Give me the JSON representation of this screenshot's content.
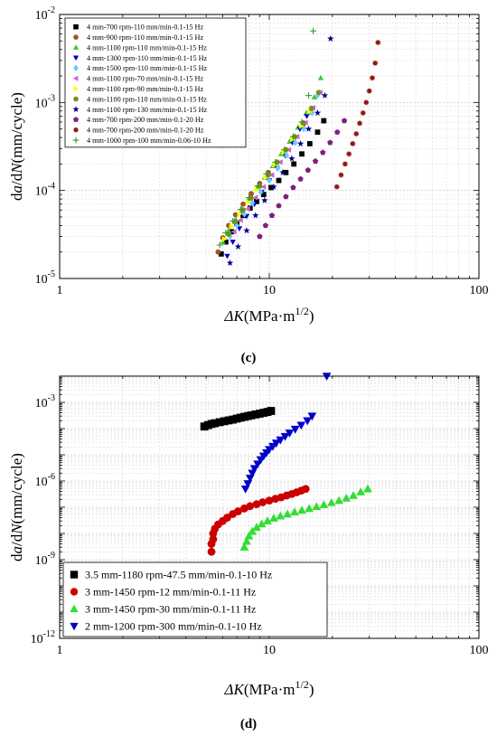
{
  "colors": {
    "frame": "#000000",
    "grid": "#c8c8c8",
    "legendBorder": "#000000"
  },
  "chart_data": [
    {
      "type": "scatter",
      "panel_label": "(c)",
      "xscale": "log",
      "yscale": "log",
      "xlim": [
        1,
        100
      ],
      "ylim": [
        1e-05,
        0.01
      ],
      "x_ticks": [
        {
          "v": 1,
          "label": "1"
        },
        {
          "v": 10,
          "label": "10"
        },
        {
          "v": 100,
          "label": "100"
        }
      ],
      "y_ticks": [
        {
          "v": 1e-05,
          "base": "10",
          "exp": "-5"
        },
        {
          "v": 0.0001,
          "base": "10",
          "exp": "-4"
        },
        {
          "v": 0.001,
          "base": "10",
          "exp": "-3"
        },
        {
          "v": 0.01,
          "base": "10",
          "exp": "-2"
        }
      ],
      "xlabel": {
        "sym": "ΔK",
        "unit": "(MPa·m",
        "exp": "1/2",
        "close": ")"
      },
      "ylabel": {
        "a": "d",
        "b": "a",
        "c": "/d",
        "d": "N",
        "e": "(mm/cycle)"
      },
      "grid": true,
      "legend_position": "top-left",
      "series": [
        {
          "name": "4 mm-700 rpm-110 mm/min-0.1-15 Hz",
          "marker": "square",
          "color": "#000000",
          "x": [
            5.9,
            6.2,
            6.6,
            7.0,
            7.5,
            8.1,
            8.7,
            9.4,
            10.2,
            11.1,
            12.0,
            13.1,
            14.3,
            15.6,
            17.0,
            18.2
          ],
          "y": [
            1.9e-05,
            2.6e-05,
            3.4e-05,
            4.2e-05,
            5.2e-05,
            6.3e-05,
            7.5e-05,
            9e-05,
            0.000108,
            0.00013,
            0.00016,
            0.0002,
            0.00026,
            0.00034,
            0.00046,
            0.00062
          ]
        },
        {
          "name": "4 mm-900 rpm-110 mm/min-0.1-15 Hz",
          "marker": "circle",
          "color": "#a0522d",
          "x": [
            5.7,
            6.0,
            6.4,
            6.9,
            7.5,
            8.2,
            9.0,
            9.9,
            10.9,
            12.0,
            13.2,
            14.5,
            15.8
          ],
          "y": [
            2e-05,
            2.9e-05,
            4e-05,
            5.3e-05,
            7e-05,
            9.2e-05,
            0.00012,
            0.00016,
            0.00021,
            0.00029,
            0.0004,
            0.00056,
            0.00078
          ]
        },
        {
          "name": "4 mm-1100 rpm-110 mm/min-0.1-15 Hz",
          "marker": "triangle-up",
          "color": "#33cc33",
          "x": [
            6.0,
            6.4,
            6.9,
            7.4,
            8.0,
            8.7,
            9.5,
            10.4,
            11.4,
            12.5,
            13.7,
            15.0,
            16.4,
            17.6
          ],
          "y": [
            2.6e-05,
            3.5e-05,
            4.7e-05,
            6.2e-05,
            8.1e-05,
            0.000106,
            0.00014,
            0.00019,
            0.00026,
            0.00036,
            0.00052,
            0.00076,
            0.00115,
            0.0019
          ]
        },
        {
          "name": "4 mm-1300 rpm-110 mm/min-0.1-15 Hz",
          "marker": "triangle-down",
          "color": "#0000cc",
          "x": [
            6.3,
            6.7,
            7.2,
            7.8,
            8.5,
            9.2,
            10.0,
            10.9,
            11.9,
            12.9,
            14.0,
            15.1
          ],
          "y": [
            1.8e-05,
            2.6e-05,
            3.7e-05,
            5.1e-05,
            7e-05,
            9.6e-05,
            0.00013,
            0.00018,
            0.00025,
            0.00035,
            0.0005,
            0.0007
          ]
        },
        {
          "name": "4 mm-1500 rpm-110 mm/min-0.1-15 Hz",
          "marker": "diamond",
          "color": "#66ccff",
          "x": [
            6.5,
            7.0,
            7.6,
            8.3,
            9.1,
            10.0,
            11.0,
            12.1,
            13.3,
            14.6,
            16.0,
            17.0
          ],
          "y": [
            3e-05,
            4e-05,
            5.4e-05,
            7.2e-05,
            9.6e-05,
            0.00013,
            0.00018,
            0.00025,
            0.00035,
            0.0005,
            0.00076,
            0.0012
          ]
        },
        {
          "name": "4 mm-1100 rpm-70 mm/min-0.1-15 Hz",
          "marker": "triangle-left",
          "color": "#cc66cc",
          "x": [
            6.8,
            7.3,
            7.9,
            8.6,
            9.4,
            10.3,
            11.3,
            12.4,
            13.6,
            14.9,
            16.2,
            17.5
          ],
          "y": [
            3.4e-05,
            4.6e-05,
            6.2e-05,
            8.3e-05,
            0.00011,
            0.00015,
            0.00021,
            0.00029,
            0.00041,
            0.00059,
            0.00087,
            0.0013
          ]
        },
        {
          "name": "4 mm-1100 rpm-90 mm/min-0.1-15 Hz",
          "marker": "triangle-right",
          "color": "#ffff00",
          "x": [
            6.1,
            6.6,
            7.2,
            7.9,
            8.7,
            9.6,
            10.6,
            11.7,
            12.9,
            14.2,
            15.5
          ],
          "y": [
            2.8e-05,
            3.9e-05,
            5.4e-05,
            7.4e-05,
            0.000102,
            0.00014,
            0.000195,
            0.00027,
            0.00038,
            0.00054,
            0.00078
          ]
        },
        {
          "name": "4 mm-1100 rpm-110 mm/min-0.1-15 Hz",
          "marker": "hexagon",
          "color": "#7f8c1a",
          "x": [
            6.4,
            6.9,
            7.5,
            8.2,
            9.0,
            9.9,
            10.9,
            12.0,
            13.2,
            14.5,
            15.9,
            17.2
          ],
          "y": [
            3.2e-05,
            4.4e-05,
            6e-05,
            8.2e-05,
            0.000112,
            0.00015,
            0.00021,
            0.00029,
            0.00041,
            0.00059,
            0.00086,
            0.0013
          ]
        },
        {
          "name": "4 mm-1100 rpm-130 mm/min-0.1-15 Hz",
          "marker": "star",
          "color": "#000080",
          "x": [
            6.5,
            7.1,
            7.8,
            8.6,
            9.5,
            10.5,
            11.6,
            12.8,
            14.1,
            15.4,
            17.0,
            18.4,
            19.6
          ],
          "y": [
            1.5e-05,
            2.3e-05,
            3.5e-05,
            5.2e-05,
            7.7e-05,
            0.00011,
            0.00016,
            0.00023,
            0.00034,
            0.0005,
            0.00076,
            0.0012,
            0.0053
          ]
        },
        {
          "name": "4 mm-700 rpm-200 mm/min-0.1-20 Hz",
          "marker": "pentagon",
          "color": "#7f1f7f",
          "x": [
            9.0,
            9.6,
            10.3,
            11.1,
            12.0,
            13.0,
            14.1,
            15.3,
            16.6,
            18.0,
            19.5,
            21.1,
            22.8
          ],
          "y": [
            3e-05,
            4e-05,
            5.2e-05,
            6.7e-05,
            8.5e-05,
            0.000108,
            0.000135,
            0.00017,
            0.000215,
            0.00027,
            0.00035,
            0.00046,
            0.00062
          ]
        },
        {
          "name": "4 mm-700 rpm-200 mm/min-0.1-20 Hz",
          "marker": "circle-half",
          "color": "#8b1a1a",
          "x": [
            21.0,
            22.0,
            23.0,
            24.0,
            25.0,
            26.0,
            27.0,
            28.0,
            29.0,
            30.0,
            31.0,
            32.0,
            33.0
          ],
          "y": [
            0.00011,
            0.00015,
            0.0002,
            0.00026,
            0.00034,
            0.00044,
            0.00058,
            0.00076,
            0.001,
            0.00135,
            0.0019,
            0.0028,
            0.0048
          ]
        },
        {
          "name": "4 mm-1000 rpm-100 mm/min-0.06-10 Hz",
          "marker": "plus",
          "color": "#339933",
          "x": [
            5.8,
            6.2,
            6.7,
            7.3,
            8.0,
            8.8,
            9.7,
            10.7,
            11.8,
            13.0,
            14.3,
            15.4,
            16.2
          ],
          "y": [
            2.4e-05,
            3.3e-05,
            4.5e-05,
            6.1e-05,
            8.3e-05,
            0.000113,
            0.000155,
            0.00021,
            0.00029,
            0.00041,
            0.0006,
            0.0012,
            0.0065
          ]
        }
      ]
    },
    {
      "type": "scatter",
      "panel_label": "(d)",
      "xscale": "log",
      "yscale": "log",
      "xlim": [
        1,
        100
      ],
      "ylim": [
        1e-12,
        0.01
      ],
      "x_ticks": [
        {
          "v": 1,
          "label": "1"
        },
        {
          "v": 10,
          "label": "10"
        },
        {
          "v": 100,
          "label": "100"
        }
      ],
      "y_ticks": [
        {
          "v": 1e-12,
          "base": "10",
          "exp": "-12"
        },
        {
          "v": 1e-09,
          "base": "10",
          "exp": "-9"
        },
        {
          "v": 1e-06,
          "base": "10",
          "exp": "-6"
        },
        {
          "v": 0.001,
          "base": "10",
          "exp": "-3"
        }
      ],
      "xlabel": {
        "sym": "ΔK",
        "unit": "(MPa·m",
        "exp": "1/2",
        "close": ")"
      },
      "ylabel": {
        "a": "d",
        "b": "a",
        "c": "/d",
        "d": "N",
        "e": "(mm/cycle)"
      },
      "grid": true,
      "legend_position": "bottom-left",
      "series": [
        {
          "name": "3.5 mm-1180 rpm-47.5 mm/min-0.1-10 Hz",
          "marker": "square",
          "color": "#000000",
          "x": [
            4.9,
            5.1,
            5.3,
            5.5,
            5.8,
            6.1,
            6.4,
            6.7,
            7.0,
            7.3,
            7.6,
            7.9,
            8.2,
            8.6,
            9.0,
            9.4,
            9.8,
            10.2
          ],
          "y": [
            0.00012,
            0.000135,
            0.00015,
            0.00016,
            0.000175,
            0.00019,
            0.000205,
            0.00022,
            0.00024,
            0.00026,
            0.00028,
            0.0003,
            0.00032,
            0.000345,
            0.00037,
            0.0004,
            0.00043,
            0.00047
          ]
        },
        {
          "name": "3 mm-1450 rpm-12 mm/min-0.1-11 Hz",
          "marker": "circle",
          "color": "#cc0000",
          "x": [
            5.3,
            5.3,
            5.4,
            5.4,
            5.5,
            5.7,
            6.0,
            6.3,
            6.7,
            7.1,
            7.6,
            8.1,
            8.7,
            9.3,
            10.0,
            10.7,
            11.4,
            12.1,
            12.8,
            13.5,
            14.2,
            14.9
          ],
          "y": [
            2e-09,
            4e-09,
            6e-09,
            1e-08,
            1.5e-08,
            2.2e-08,
            3e-08,
            4e-08,
            5.5e-08,
            7e-08,
            9e-08,
            1.1e-07,
            1.3e-07,
            1.55e-07,
            1.8e-07,
            2.1e-07,
            2.4e-07,
            2.8e-07,
            3.2e-07,
            3.7e-07,
            4.3e-07,
            5e-07
          ]
        },
        {
          "name": "3 mm-1450 rpm-30 mm/min-0.1-11 Hz",
          "marker": "triangle-up",
          "color": "#33dd33",
          "x": [
            7.6,
            7.8,
            8.0,
            8.3,
            8.7,
            9.2,
            9.8,
            10.5,
            11.3,
            12.2,
            13.2,
            14.3,
            15.5,
            16.8,
            18.2,
            19.8,
            21.5,
            23.3,
            25.2,
            27.3,
            29.5
          ],
          "y": [
            3e-09,
            5e-09,
            8e-09,
            1.2e-08,
            1.7e-08,
            2.3e-08,
            3e-08,
            3.8e-08,
            4.6e-08,
            5.5e-08,
            6.5e-08,
            7.6e-08,
            8.9e-08,
            1.05e-07,
            1.25e-07,
            1.5e-07,
            1.8e-07,
            2.2e-07,
            2.8e-07,
            3.8e-07,
            5e-07
          ]
        },
        {
          "name": "2 mm-1200 rpm-300 mm/min-0.1-10 Hz",
          "marker": "triangle-down",
          "color": "#0000cc",
          "x": [
            7.7,
            7.9,
            8.1,
            8.3,
            8.5,
            8.8,
            9.1,
            9.4,
            9.7,
            10.0,
            10.4,
            10.8,
            11.3,
            11.9,
            12.5,
            13.3,
            14.2,
            15.2,
            16.0,
            18.8
          ],
          "y": [
            5e-07,
            8e-07,
            1.3e-06,
            2e-06,
            3e-06,
            4.5e-06,
            6.5e-06,
            9e-06,
            1.2e-05,
            1.6e-05,
            2.1e-05,
            2.8e-05,
            3.7e-05,
            5e-05,
            6.8e-05,
            9.5e-05,
            0.000135,
            0.0002,
            0.0003,
            0.01
          ]
        }
      ]
    }
  ]
}
